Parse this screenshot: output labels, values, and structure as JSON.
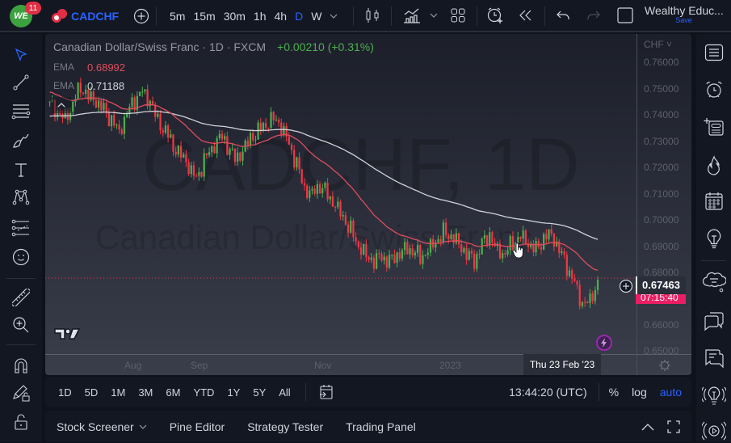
{
  "topbar": {
    "notification_count": "11",
    "logo_text": "WE",
    "symbol": "CADCHF",
    "intervals": [
      "5m",
      "15m",
      "30m",
      "1h",
      "4h",
      "D",
      "W"
    ],
    "active_interval": "D",
    "account_name": "Wealthy Educ...",
    "save_label": "Save"
  },
  "chart": {
    "title": "Canadian Dollar/Swiss Franc",
    "interval": "1D",
    "exchange": "FXCM",
    "change": "+0.00210 (+0.31%)",
    "ema1_label": "EMA",
    "ema1_value": "0.68992",
    "ema2_label": "EMA",
    "ema2_value": "0.71188",
    "watermark_symbol": "CADCHF, 1D",
    "watermark_name": "Canadian Dollar/Swiss Franc",
    "currency": "CHF",
    "last_price": "0.67463",
    "countdown": "07:15:40",
    "crosshair_date": "Thu 23 Feb '23",
    "price_labels": [
      "0.76000",
      "0.75000",
      "0.74000",
      "0.73000",
      "0.72000",
      "0.71000",
      "0.70000",
      "0.69000",
      "0.68000",
      "0.66000",
      "0.65000"
    ],
    "time_labels": [
      "Aug",
      "Sep",
      "Nov",
      "2023"
    ],
    "colors": {
      "up": "#4caf50",
      "down": "#f23645",
      "ema_fast": "#e04d5d",
      "ema_slow": "#d1d4dc",
      "accent": "#2962ff",
      "countdown_bg": "#e91e63"
    }
  },
  "chart_data": {
    "type": "candlestick",
    "title": "Canadian Dollar/Swiss Franc · 1D · FXCM",
    "ylabel": "CHF",
    "ylim": [
      0.645,
      0.765
    ],
    "x_labels": [
      "Aug",
      "Sep",
      "Nov",
      "2023"
    ],
    "last_price": 0.67463,
    "close_series_approx": [
      0.744,
      0.741,
      0.739,
      0.745,
      0.752,
      0.747,
      0.745,
      0.742,
      0.738,
      0.734,
      0.741,
      0.746,
      0.749,
      0.745,
      0.738,
      0.734,
      0.728,
      0.724,
      0.719,
      0.714,
      0.722,
      0.727,
      0.732,
      0.728,
      0.722,
      0.725,
      0.731,
      0.734,
      0.737,
      0.739,
      0.735,
      0.728,
      0.72,
      0.711,
      0.709,
      0.712,
      0.708,
      0.703,
      0.699,
      0.694,
      0.688,
      0.684,
      0.681,
      0.683,
      0.681,
      0.684,
      0.687,
      0.686,
      0.683,
      0.685,
      0.689,
      0.693,
      0.692,
      0.689,
      0.684,
      0.681,
      0.688,
      0.692,
      0.686,
      0.685,
      0.689,
      0.691,
      0.688,
      0.686,
      0.691,
      0.693,
      0.686,
      0.679,
      0.672,
      0.664,
      0.666,
      0.674
    ],
    "series": [
      {
        "name": "EMA (fast)",
        "last": 0.68992
      },
      {
        "name": "EMA (slow)",
        "last": 0.71188
      }
    ]
  },
  "left_toolbar": {
    "tools": [
      "cursor",
      "trend-line",
      "fib-retracement",
      "brush",
      "text",
      "pattern",
      "prediction",
      "emoji",
      "ruler",
      "zoom-in",
      "magnet",
      "lock-drawing",
      "lock"
    ]
  },
  "right_toolbar": {
    "tools": [
      "watchlist",
      "alerts",
      "object-tree",
      "hotlist",
      "calendar",
      "ideas",
      "minds",
      "chats",
      "notifications",
      "streams"
    ]
  },
  "bottom_bar": {
    "ranges": [
      "1D",
      "5D",
      "1M",
      "3M",
      "6M",
      "YTD",
      "1Y",
      "5Y",
      "All"
    ],
    "time": "13:44:20 (UTC)",
    "percent": "%",
    "log": "log",
    "auto": "auto"
  },
  "panel_bar": {
    "tabs": [
      "Stock Screener",
      "Pine Editor",
      "Strategy Tester",
      "Trading Panel"
    ]
  }
}
